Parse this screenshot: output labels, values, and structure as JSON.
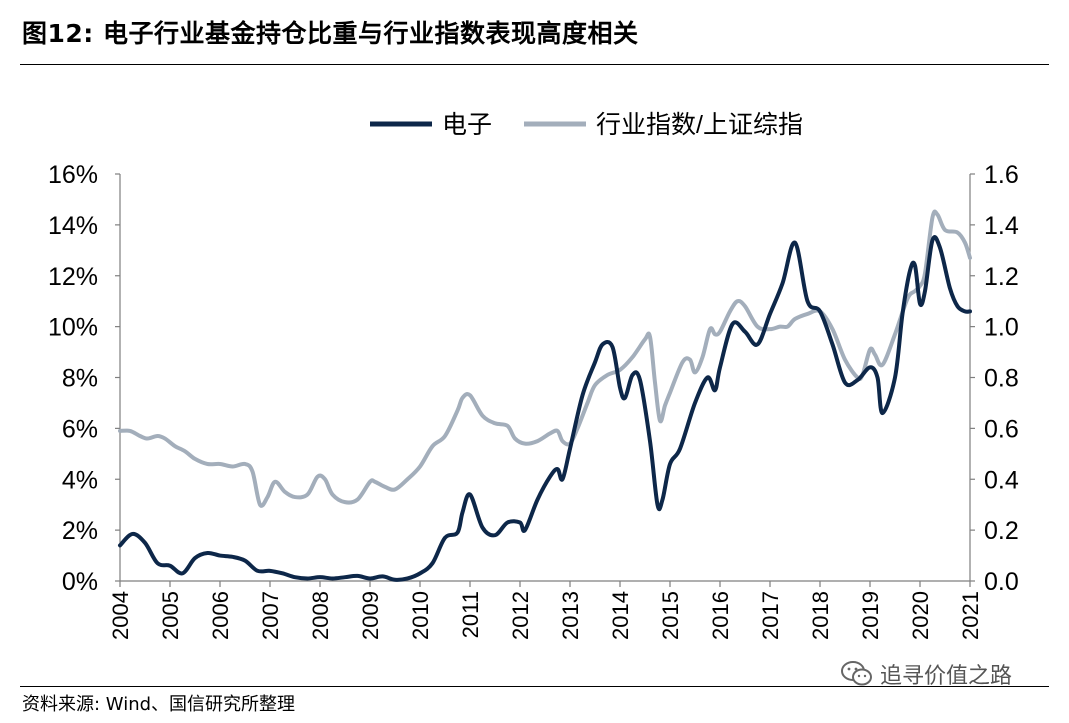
{
  "header": {
    "title": "图12:  电子行业基金持仓比重与行业指数表现高度相关"
  },
  "footer": {
    "source": "资料来源: Wind、国信研究所整理",
    "watermark": "追寻价值之路"
  },
  "colors": {
    "electronics": "#0d2749",
    "index_ratio": "#a3aebb",
    "axis": "#7f7f7f"
  },
  "chart_data": {
    "type": "line",
    "title": "",
    "legend": {
      "placement": "top-center",
      "entries": [
        "电子",
        "行业指数/上证综指"
      ]
    },
    "grid": false,
    "x_ticks": [
      "2004",
      "2005",
      "2006",
      "2007",
      "2008",
      "2009",
      "2010",
      "2011",
      "2012",
      "2013",
      "2014",
      "2015",
      "2016",
      "2017",
      "2018",
      "2019",
      "2020",
      "2021"
    ],
    "xlim": [
      2004,
      2021
    ],
    "y_left": {
      "range": [
        0,
        16
      ],
      "ticks": [
        "0%",
        "2%",
        "4%",
        "6%",
        "8%",
        "10%",
        "12%",
        "14%",
        "16%"
      ],
      "unit": "%"
    },
    "y_right": {
      "range": [
        0,
        1.6
      ],
      "ticks": [
        "0.0",
        "0.2",
        "0.4",
        "0.6",
        "0.8",
        "1.0",
        "1.2",
        "1.4",
        "1.6"
      ]
    },
    "series": [
      {
        "name": "电子",
        "axis": "left",
        "points": [
          [
            2004.0,
            1.4
          ],
          [
            2004.25,
            1.85
          ],
          [
            2004.5,
            1.5
          ],
          [
            2004.75,
            0.7
          ],
          [
            2005.0,
            0.6
          ],
          [
            2005.25,
            0.3
          ],
          [
            2005.5,
            0.9
          ],
          [
            2005.75,
            1.1
          ],
          [
            2006.0,
            1.0
          ],
          [
            2006.25,
            0.95
          ],
          [
            2006.5,
            0.8
          ],
          [
            2006.75,
            0.4
          ],
          [
            2007.0,
            0.4
          ],
          [
            2007.25,
            0.3
          ],
          [
            2007.5,
            0.15
          ],
          [
            2007.75,
            0.1
          ],
          [
            2008.0,
            0.15
          ],
          [
            2008.25,
            0.1
          ],
          [
            2008.5,
            0.15
          ],
          [
            2008.75,
            0.2
          ],
          [
            2009.0,
            0.1
          ],
          [
            2009.25,
            0.18
          ],
          [
            2009.5,
            0.05
          ],
          [
            2009.75,
            0.1
          ],
          [
            2010.0,
            0.3
          ],
          [
            2010.25,
            0.7
          ],
          [
            2010.5,
            1.7
          ],
          [
            2010.75,
            1.9
          ],
          [
            2010.85,
            2.7
          ],
          [
            2011.0,
            3.4
          ],
          [
            2011.25,
            2.1
          ],
          [
            2011.5,
            1.8
          ],
          [
            2011.75,
            2.3
          ],
          [
            2012.0,
            2.3
          ],
          [
            2012.1,
            2.0
          ],
          [
            2012.35,
            3.2
          ],
          [
            2012.6,
            4.1
          ],
          [
            2012.75,
            4.4
          ],
          [
            2012.85,
            4.0
          ],
          [
            2013.0,
            5.2
          ],
          [
            2013.25,
            7.3
          ],
          [
            2013.5,
            8.6
          ],
          [
            2013.65,
            9.3
          ],
          [
            2013.85,
            9.2
          ],
          [
            2014.0,
            7.6
          ],
          [
            2014.1,
            7.2
          ],
          [
            2014.25,
            8.1
          ],
          [
            2014.4,
            7.9
          ],
          [
            2014.6,
            5.5
          ],
          [
            2014.75,
            3.0
          ],
          [
            2014.85,
            3.2
          ],
          [
            2015.0,
            4.6
          ],
          [
            2015.2,
            5.2
          ],
          [
            2015.5,
            7.0
          ],
          [
            2015.75,
            8.0
          ],
          [
            2015.9,
            7.5
          ],
          [
            2016.0,
            8.4
          ],
          [
            2016.25,
            10.1
          ],
          [
            2016.5,
            9.8
          ],
          [
            2016.75,
            9.3
          ],
          [
            2017.0,
            10.5
          ],
          [
            2017.25,
            11.7
          ],
          [
            2017.5,
            13.3
          ],
          [
            2017.75,
            11.0
          ],
          [
            2018.0,
            10.6
          ],
          [
            2018.25,
            9.3
          ],
          [
            2018.5,
            7.8
          ],
          [
            2018.75,
            7.9
          ],
          [
            2019.0,
            8.4
          ],
          [
            2019.15,
            8.0
          ],
          [
            2019.25,
            6.6
          ],
          [
            2019.5,
            8.0
          ],
          [
            2019.65,
            10.5
          ],
          [
            2019.8,
            12.2
          ],
          [
            2019.9,
            12.4
          ],
          [
            2020.0,
            10.9
          ],
          [
            2020.1,
            11.4
          ],
          [
            2020.25,
            13.4
          ],
          [
            2020.4,
            13.1
          ],
          [
            2020.6,
            11.5
          ],
          [
            2020.75,
            10.8
          ],
          [
            2020.9,
            10.6
          ],
          [
            2021.0,
            10.6
          ]
        ]
      },
      {
        "name": "行业指数/上证综指",
        "axis": "right",
        "points": [
          [
            2004.0,
            0.59
          ],
          [
            2004.2,
            0.59
          ],
          [
            2004.4,
            0.57
          ],
          [
            2004.55,
            0.56
          ],
          [
            2004.75,
            0.57
          ],
          [
            2004.9,
            0.56
          ],
          [
            2005.1,
            0.53
          ],
          [
            2005.3,
            0.51
          ],
          [
            2005.5,
            0.48
          ],
          [
            2005.75,
            0.46
          ],
          [
            2006.0,
            0.46
          ],
          [
            2006.25,
            0.45
          ],
          [
            2006.5,
            0.46
          ],
          [
            2006.65,
            0.43
          ],
          [
            2006.8,
            0.3
          ],
          [
            2006.95,
            0.33
          ],
          [
            2007.1,
            0.39
          ],
          [
            2007.3,
            0.35
          ],
          [
            2007.5,
            0.33
          ],
          [
            2007.75,
            0.34
          ],
          [
            2007.95,
            0.41
          ],
          [
            2008.1,
            0.4
          ],
          [
            2008.25,
            0.34
          ],
          [
            2008.5,
            0.31
          ],
          [
            2008.75,
            0.32
          ],
          [
            2009.0,
            0.39
          ],
          [
            2009.1,
            0.39
          ],
          [
            2009.3,
            0.37
          ],
          [
            2009.5,
            0.36
          ],
          [
            2009.75,
            0.4
          ],
          [
            2010.0,
            0.45
          ],
          [
            2010.25,
            0.53
          ],
          [
            2010.5,
            0.57
          ],
          [
            2010.75,
            0.67
          ],
          [
            2010.85,
            0.72
          ],
          [
            2011.0,
            0.73
          ],
          [
            2011.25,
            0.65
          ],
          [
            2011.5,
            0.62
          ],
          [
            2011.75,
            0.61
          ],
          [
            2011.9,
            0.56
          ],
          [
            2012.1,
            0.54
          ],
          [
            2012.35,
            0.55
          ],
          [
            2012.6,
            0.58
          ],
          [
            2012.75,
            0.59
          ],
          [
            2012.85,
            0.55
          ],
          [
            2013.0,
            0.54
          ],
          [
            2013.15,
            0.6
          ],
          [
            2013.35,
            0.7
          ],
          [
            2013.5,
            0.77
          ],
          [
            2013.75,
            0.81
          ],
          [
            2014.0,
            0.83
          ],
          [
            2014.25,
            0.88
          ],
          [
            2014.5,
            0.95
          ],
          [
            2014.6,
            0.96
          ],
          [
            2014.7,
            0.78
          ],
          [
            2014.8,
            0.63
          ],
          [
            2014.9,
            0.69
          ],
          [
            2015.0,
            0.74
          ],
          [
            2015.25,
            0.86
          ],
          [
            2015.4,
            0.87
          ],
          [
            2015.5,
            0.82
          ],
          [
            2015.65,
            0.88
          ],
          [
            2015.8,
            0.99
          ],
          [
            2015.9,
            0.97
          ],
          [
            2016.0,
            0.98
          ],
          [
            2016.2,
            1.06
          ],
          [
            2016.35,
            1.1
          ],
          [
            2016.5,
            1.08
          ],
          [
            2016.75,
            1.0
          ],
          [
            2017.0,
            0.99
          ],
          [
            2017.2,
            1.0
          ],
          [
            2017.35,
            1.0
          ],
          [
            2017.5,
            1.03
          ],
          [
            2017.75,
            1.05
          ],
          [
            2018.0,
            1.06
          ],
          [
            2018.25,
            0.99
          ],
          [
            2018.5,
            0.87
          ],
          [
            2018.75,
            0.8
          ],
          [
            2018.85,
            0.81
          ],
          [
            2019.0,
            0.91
          ],
          [
            2019.1,
            0.89
          ],
          [
            2019.25,
            0.85
          ],
          [
            2019.5,
            0.97
          ],
          [
            2019.75,
            1.11
          ],
          [
            2019.9,
            1.14
          ],
          [
            2020.0,
            1.16
          ],
          [
            2020.1,
            1.21
          ],
          [
            2020.25,
            1.43
          ],
          [
            2020.35,
            1.44
          ],
          [
            2020.5,
            1.38
          ],
          [
            2020.75,
            1.37
          ],
          [
            2020.9,
            1.33
          ],
          [
            2021.0,
            1.27
          ]
        ]
      }
    ]
  }
}
